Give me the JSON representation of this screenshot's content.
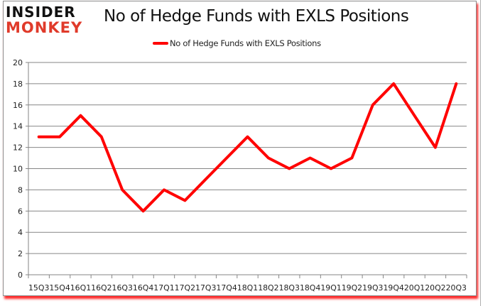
{
  "logo": {
    "line1": "INSIDER",
    "line2": "MONKEY"
  },
  "title": "No of Hedge Funds with EXLS Positions",
  "legend": [
    {
      "label": "No of Hedge Funds with EXLS Positions",
      "color": "#ff0000"
    }
  ],
  "chart_data": {
    "type": "line",
    "title": "No of Hedge Funds with EXLS Positions",
    "xlabel": "",
    "ylabel": "",
    "categories": [
      "15Q3",
      "15Q4",
      "16Q1",
      "16Q2",
      "16Q3",
      "16Q4",
      "17Q1",
      "17Q2",
      "17Q3",
      "17Q4",
      "18Q1",
      "18Q2",
      "18Q3",
      "18Q4",
      "19Q1",
      "19Q2",
      "19Q3",
      "19Q4",
      "20Q1",
      "20Q2",
      "20Q3"
    ],
    "series": [
      {
        "name": "No of Hedge Funds with EXLS Positions",
        "color": "#ff0000",
        "values": [
          13,
          13,
          15,
          13,
          8,
          6,
          8,
          7,
          9,
          11,
          13,
          11,
          10,
          11,
          10,
          11,
          16,
          18,
          15,
          12,
          18
        ]
      }
    ],
    "ylim": [
      0,
      20
    ],
    "yticks": [
      0,
      2,
      4,
      6,
      8,
      10,
      12,
      14,
      16,
      18,
      20
    ],
    "grid": true,
    "legend_position": "top"
  }
}
